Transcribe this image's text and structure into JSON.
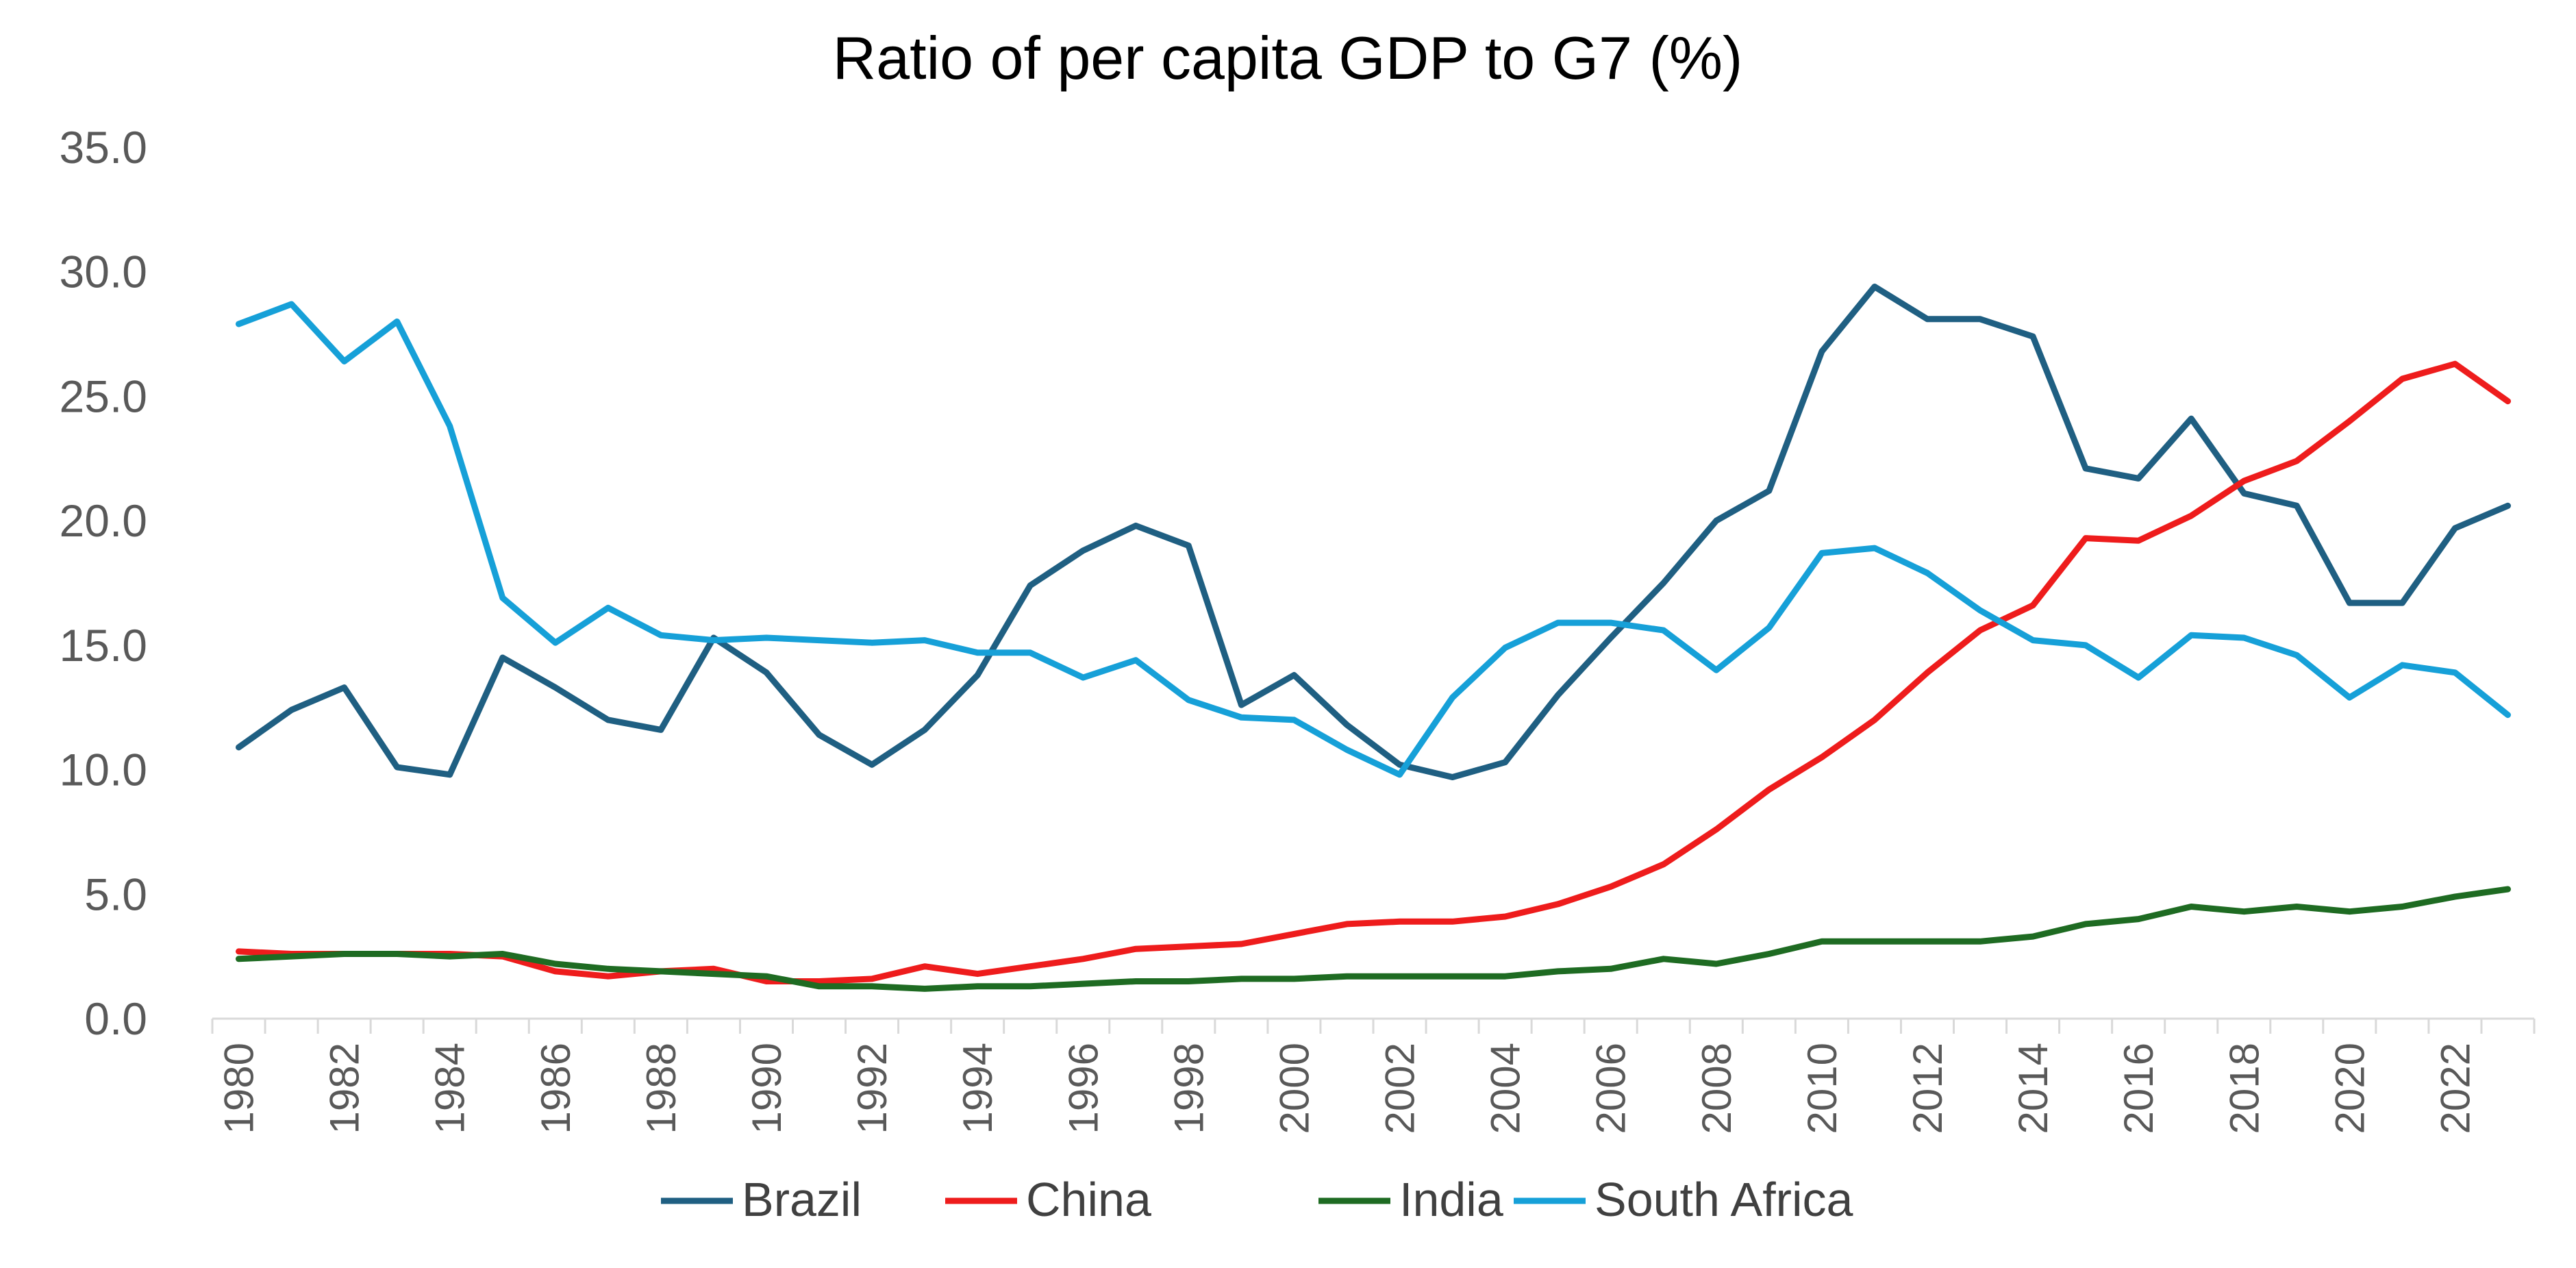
{
  "chart_data": {
    "type": "line",
    "title": "Ratio of per capita GDP to G7 (%)",
    "xlabel": "",
    "ylabel": "",
    "ylim": [
      0,
      35
    ],
    "yticks": [
      "0.0",
      "5.0",
      "10.0",
      "15.0",
      "20.0",
      "25.0",
      "30.0",
      "35.0"
    ],
    "ytick_values": [
      0,
      5,
      10,
      15,
      20,
      25,
      30,
      35
    ],
    "x": [
      1980,
      1981,
      1982,
      1983,
      1984,
      1985,
      1986,
      1987,
      1988,
      1989,
      1990,
      1991,
      1992,
      1993,
      1994,
      1995,
      1996,
      1997,
      1998,
      1999,
      2000,
      2001,
      2002,
      2003,
      2004,
      2005,
      2006,
      2007,
      2008,
      2009,
      2010,
      2011,
      2012,
      2013,
      2014,
      2015,
      2016,
      2017,
      2018,
      2019,
      2020,
      2021,
      2022,
      2023
    ],
    "xtick_labels": [
      "1980",
      "1982",
      "1984",
      "1986",
      "1988",
      "1990",
      "1992",
      "1994",
      "1996",
      "1998",
      "2000",
      "2002",
      "2004",
      "2006",
      "2008",
      "2010",
      "2012",
      "2014",
      "2016",
      "2018",
      "2020",
      "2022"
    ],
    "grid": false,
    "legend_position": "bottom",
    "series": [
      {
        "name": "Brazil",
        "color": "#1f5f82",
        "values": [
          10.9,
          12.4,
          13.3,
          10.1,
          9.8,
          14.5,
          13.3,
          12.0,
          11.6,
          15.3,
          13.9,
          11.4,
          10.2,
          11.6,
          13.8,
          17.4,
          18.8,
          19.8,
          19.0,
          12.6,
          13.8,
          11.8,
          10.2,
          9.7,
          10.3,
          13.0,
          15.3,
          17.5,
          20.0,
          21.2,
          26.8,
          29.4,
          28.1,
          28.1,
          27.4,
          22.1,
          21.7,
          24.1,
          21.1,
          20.6,
          16.7,
          16.7,
          19.7,
          20.6
        ]
      },
      {
        "name": "China",
        "color": "#ee1c1c",
        "values": [
          2.7,
          2.6,
          2.6,
          2.6,
          2.6,
          2.5,
          1.9,
          1.7,
          1.9,
          2.0,
          1.5,
          1.5,
          1.6,
          2.1,
          1.8,
          2.1,
          2.4,
          2.8,
          2.9,
          3.0,
          3.4,
          3.8,
          3.9,
          3.9,
          4.1,
          4.6,
          5.3,
          6.2,
          7.6,
          9.2,
          10.5,
          12.0,
          13.9,
          15.6,
          16.6,
          19.3,
          19.2,
          20.2,
          21.6,
          22.4,
          24.0,
          25.7,
          26.3,
          24.8
        ]
      },
      {
        "name": "India",
        "color": "#1e6b22",
        "values": [
          2.4,
          2.5,
          2.6,
          2.6,
          2.5,
          2.6,
          2.2,
          2.0,
          1.9,
          1.8,
          1.7,
          1.3,
          1.3,
          1.2,
          1.3,
          1.3,
          1.4,
          1.5,
          1.5,
          1.6,
          1.6,
          1.7,
          1.7,
          1.7,
          1.7,
          1.9,
          2.0,
          2.4,
          2.2,
          2.6,
          3.1,
          3.1,
          3.1,
          3.1,
          3.3,
          3.8,
          4.0,
          4.5,
          4.3,
          4.5,
          4.3,
          4.5,
          4.9,
          5.2
        ]
      },
      {
        "name": "South Africa",
        "color": "#16a0d8",
        "values": [
          27.9,
          28.7,
          26.4,
          28.0,
          23.8,
          16.9,
          15.1,
          16.5,
          15.4,
          15.2,
          15.3,
          15.2,
          15.1,
          15.2,
          14.7,
          14.7,
          13.7,
          14.4,
          12.8,
          12.1,
          12.0,
          10.8,
          9.8,
          12.9,
          14.9,
          15.9,
          15.9,
          15.6,
          14.0,
          15.7,
          18.7,
          18.9,
          17.9,
          16.4,
          15.2,
          15.0,
          13.7,
          15.4,
          15.3,
          14.6,
          12.9,
          14.2,
          13.9,
          12.2
        ]
      }
    ]
  }
}
